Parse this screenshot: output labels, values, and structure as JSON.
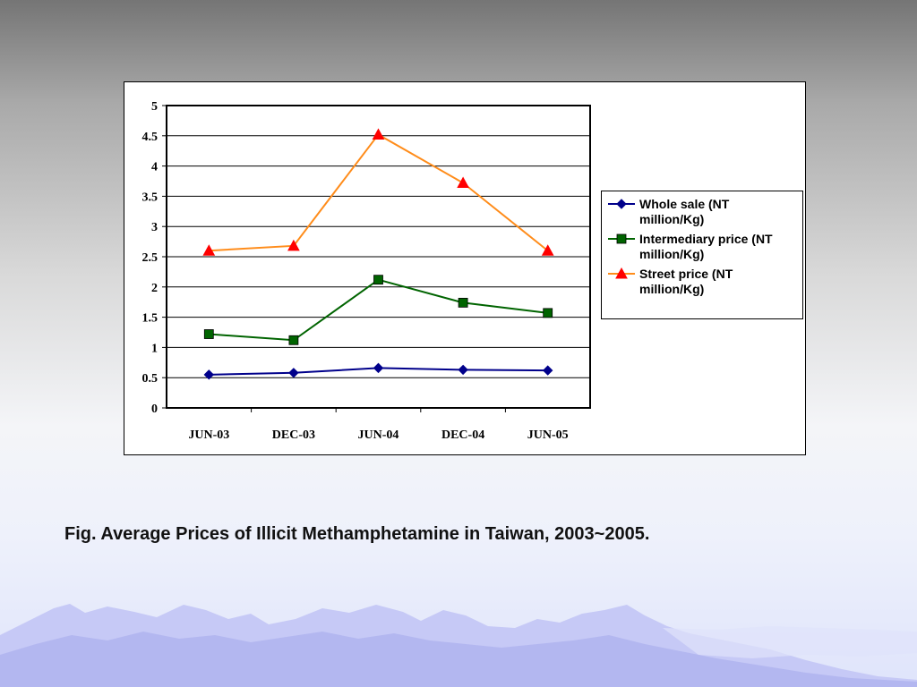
{
  "caption": "Fig.  Average Prices of Illicit Methamphetamine in Taiwan, 2003~2005.",
  "chart_data": {
    "type": "line",
    "categories": [
      "JUN-03",
      "DEC-03",
      "JUN-04",
      "DEC-04",
      "JUN-05"
    ],
    "ylim": [
      0,
      5
    ],
    "yticks": [
      "0",
      "0.5",
      "1",
      "1.5",
      "2",
      "2.5",
      "3",
      "3.5",
      "4",
      "4.5",
      "5"
    ],
    "grid": true,
    "legend_position": "right",
    "series": [
      {
        "name": "Whole sale (NT million/Kg)",
        "name_lines": [
          "Whole sale (NT",
          "million/Kg)"
        ],
        "color": "#00008b",
        "marker": "diamond",
        "values": [
          0.55,
          0.58,
          0.66,
          0.63,
          0.62
        ]
      },
      {
        "name": "Intermediary price (NT million/Kg)",
        "name_lines": [
          "Intermediary price (NT",
          "million/Kg)"
        ],
        "color": "#006400",
        "marker": "square",
        "values": [
          1.22,
          1.12,
          2.12,
          1.74,
          1.57
        ]
      },
      {
        "name": "Street price (NT million/Kg)",
        "name_lines": [
          "Street price (NT",
          "million/Kg)"
        ],
        "color": "#ff8c1a",
        "marker": "triangle",
        "marker_color": "#ff0000",
        "values": [
          2.6,
          2.68,
          4.52,
          3.72,
          2.6
        ]
      }
    ]
  }
}
